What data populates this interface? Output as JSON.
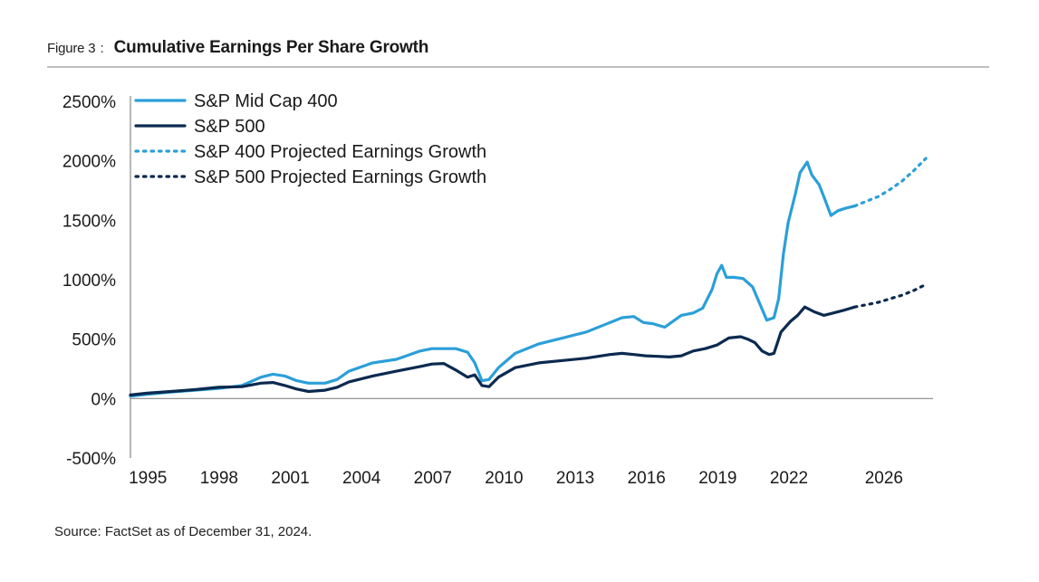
{
  "figure": {
    "label": "Figure 3",
    "separator": ":",
    "title": "Cumulative Earnings Per Share Growth",
    "source": "Source: FactSet as of December 31, 2024."
  },
  "colors": {
    "midcap": "#2b9fd9",
    "sp500": "#0b2a4f",
    "axis": "#888888",
    "text": "#1a1a1a"
  },
  "chart_data": {
    "type": "line",
    "title": "Cumulative Earnings Per Share Growth",
    "xlabel": "",
    "ylabel": "",
    "xlim": [
      1994.8,
      2028.6
    ],
    "ylim": [
      -500,
      2500
    ],
    "y_ticks": [
      2500,
      2000,
      1500,
      1000,
      500,
      0,
      -500
    ],
    "y_tick_labels": [
      "2500%",
      "2000%",
      "1500%",
      "1000%",
      "500%",
      "0%",
      "-500%"
    ],
    "x_ticks": [
      1995,
      1998,
      2001,
      2004,
      2007,
      2010,
      2013,
      2016,
      2019,
      2022,
      2026
    ],
    "x_tick_labels": [
      "1995",
      "1998",
      "2001",
      "2004",
      "2007",
      "2010",
      "2013",
      "2016",
      "2019",
      "2022",
      "2026"
    ],
    "grid": false,
    "legend_position": "top-left",
    "series": [
      {
        "name": "S&P Mid Cap 400",
        "style": "solid",
        "color": "#2b9fd9",
        "x": [
          1994.8,
          1995.5,
          1996.5,
          1997.5,
          1998.5,
          1999.5,
          2000.3,
          2000.8,
          2001.3,
          2001.8,
          2002.3,
          2003.0,
          2003.5,
          2004.0,
          2005.0,
          2006.0,
          2007.0,
          2007.5,
          2008.0,
          2008.5,
          2009.0,
          2009.3,
          2009.6,
          2009.9,
          2010.3,
          2011.0,
          2012.0,
          2013.0,
          2014.0,
          2015.0,
          2015.5,
          2016.0,
          2016.4,
          2016.8,
          2017.3,
          2018.0,
          2018.5,
          2018.9,
          2019.3,
          2019.5,
          2019.7,
          2019.9,
          2020.2,
          2020.6,
          2021.0,
          2021.3,
          2021.6,
          2021.9,
          2022.1,
          2022.3,
          2022.5,
          2022.8,
          2023.0,
          2023.3,
          2023.5,
          2023.8,
          2024.0,
          2024.3,
          2024.6,
          2024.9,
          2025.3
        ],
        "y": [
          20,
          35,
          55,
          70,
          85,
          110,
          180,
          205,
          190,
          150,
          130,
          130,
          160,
          230,
          300,
          330,
          400,
          420,
          420,
          420,
          390,
          300,
          150,
          160,
          260,
          380,
          460,
          510,
          560,
          640,
          680,
          690,
          640,
          630,
          600,
          700,
          720,
          760,
          920,
          1050,
          1120,
          1020,
          1020,
          1010,
          940,
          800,
          660,
          680,
          840,
          1220,
          1480,
          1720,
          1900,
          1990,
          1880,
          1800,
          1700,
          1540,
          1580,
          1600,
          1620
        ]
      },
      {
        "name": "S&P 500",
        "style": "solid",
        "color": "#0b2a4f",
        "x": [
          1994.8,
          1995.5,
          1996.5,
          1997.5,
          1998.5,
          1999.5,
          2000.3,
          2000.8,
          2001.3,
          2001.8,
          2002.3,
          2003.0,
          2003.5,
          2004.0,
          2005.0,
          2006.0,
          2007.0,
          2007.5,
          2008.0,
          2008.5,
          2009.0,
          2009.3,
          2009.6,
          2009.9,
          2010.3,
          2011.0,
          2012.0,
          2013.0,
          2014.0,
          2015.0,
          2015.5,
          2016.0,
          2016.5,
          2017.0,
          2017.5,
          2018.0,
          2018.5,
          2019.0,
          2019.5,
          2020.0,
          2020.5,
          2020.8,
          2021.1,
          2021.4,
          2021.7,
          2021.9,
          2022.2,
          2022.6,
          2022.9,
          2023.2,
          2023.6,
          2024.0,
          2024.4,
          2024.8,
          2025.3
        ],
        "y": [
          30,
          45,
          60,
          75,
          95,
          100,
          130,
          135,
          110,
          80,
          60,
          70,
          95,
          140,
          190,
          230,
          270,
          290,
          295,
          240,
          180,
          200,
          110,
          100,
          180,
          260,
          300,
          320,
          340,
          370,
          380,
          370,
          360,
          355,
          350,
          360,
          400,
          420,
          450,
          510,
          520,
          500,
          470,
          400,
          370,
          380,
          560,
          650,
          700,
          770,
          730,
          700,
          720,
          740,
          770
        ]
      },
      {
        "name": "S&P 400 Projected Earnings Growth",
        "style": "dotted",
        "color": "#2b9fd9",
        "x": [
          2025.3,
          2025.8,
          2026.3,
          2026.8,
          2027.3,
          2027.8,
          2028.3
        ],
        "y": [
          1620,
          1660,
          1700,
          1760,
          1830,
          1920,
          2020
        ]
      },
      {
        "name": "S&P 500 Projected Earnings Growth",
        "style": "dotted",
        "color": "#0b2a4f",
        "x": [
          2025.3,
          2025.8,
          2026.3,
          2026.8,
          2027.3,
          2027.8,
          2028.3
        ],
        "y": [
          770,
          790,
          810,
          840,
          870,
          910,
          960
        ]
      }
    ]
  }
}
